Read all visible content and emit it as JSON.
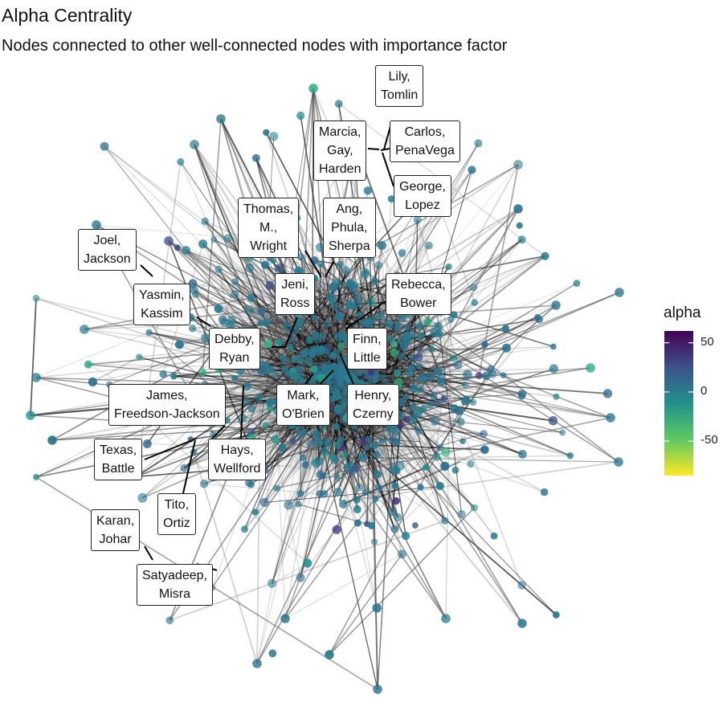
{
  "chart": {
    "title": "Alpha Centrality",
    "subtitle": "Nodes connected to other well-connected nodes with importance factor"
  },
  "legend": {
    "title": "alpha",
    "ticks": [
      "50",
      "0",
      "-50"
    ],
    "range": [
      -85,
      62
    ],
    "tick_values": [
      50,
      0,
      -50
    ],
    "scale": "viridis",
    "colors": [
      "#fde725",
      "#5ec962",
      "#21918c",
      "#3b528b",
      "#440154"
    ]
  },
  "labels": [
    {
      "id": "lily",
      "lines": [
        "Lily,",
        "Tomlin"
      ]
    },
    {
      "id": "marcia",
      "lines": [
        "Marcia,",
        "Gay,",
        "Harden"
      ]
    },
    {
      "id": "carlos",
      "lines": [
        "Carlos,",
        "PenaVega"
      ]
    },
    {
      "id": "george",
      "lines": [
        "George,",
        "Lopez"
      ]
    },
    {
      "id": "thomas",
      "lines": [
        "Thomas,",
        "M.,",
        "Wright"
      ]
    },
    {
      "id": "ang",
      "lines": [
        "Ang,",
        "Phula,",
        "Sherpa"
      ]
    },
    {
      "id": "joel",
      "lines": [
        "Joel,",
        "Jackson"
      ]
    },
    {
      "id": "jeni",
      "lines": [
        "Jeni,",
        "Ross"
      ]
    },
    {
      "id": "rebecca",
      "lines": [
        "Rebecca,",
        "Bower"
      ]
    },
    {
      "id": "yasmin",
      "lines": [
        "Yasmin,",
        "Kassim"
      ]
    },
    {
      "id": "debby",
      "lines": [
        "Debby,",
        "Ryan"
      ]
    },
    {
      "id": "finn",
      "lines": [
        "Finn,",
        "Little"
      ]
    },
    {
      "id": "james",
      "lines": [
        "James,",
        "Freedson-Jackson"
      ]
    },
    {
      "id": "mark",
      "lines": [
        "Mark,",
        "O'Brien"
      ]
    },
    {
      "id": "henry",
      "lines": [
        "Henry,",
        "Czerny"
      ]
    },
    {
      "id": "texas",
      "lines": [
        "Texas,",
        "Battle"
      ]
    },
    {
      "id": "hays",
      "lines": [
        "Hays,",
        "Wellford"
      ]
    },
    {
      "id": "tito",
      "lines": [
        "Tito,",
        "Ortiz"
      ]
    },
    {
      "id": "karan",
      "lines": [
        "Karan,",
        "Johar"
      ]
    },
    {
      "id": "satyadeep",
      "lines": [
        "Satyadeep,",
        "Misra"
      ]
    }
  ]
}
